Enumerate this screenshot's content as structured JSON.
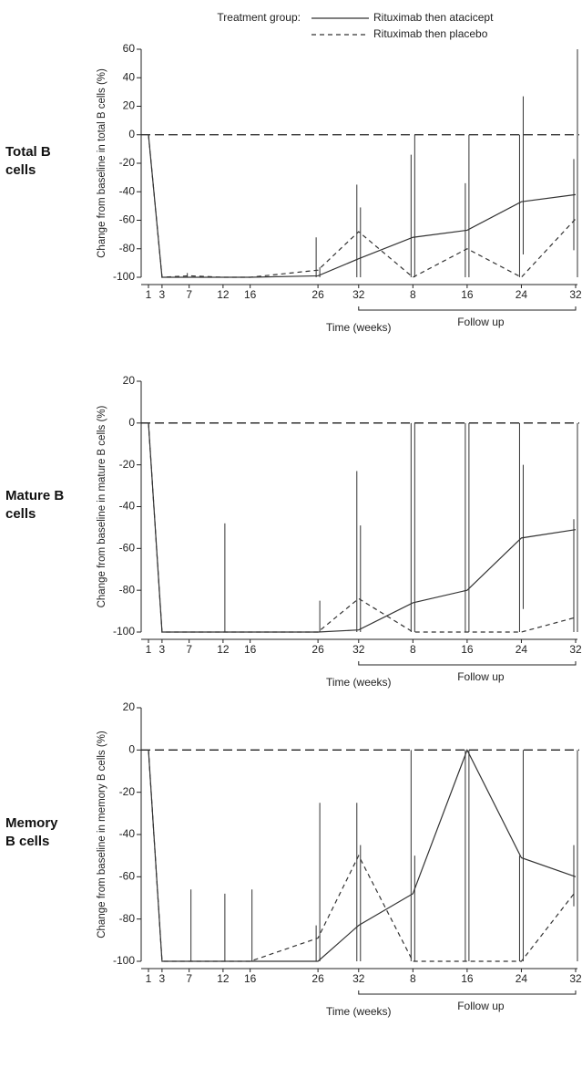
{
  "chart_data": [
    {
      "type": "line",
      "row_label": "Total B cells",
      "y_label": "Change from baseline in total B cells (%)",
      "x_label": "Time (weeks)",
      "follow_up_label": "Follow up",
      "legend_title": "Treatment group:",
      "legend": "top-right",
      "x": [
        1,
        3,
        7,
        12,
        16,
        26,
        32,
        40,
        48,
        56,
        64
      ],
      "xlim": [
        1,
        64
      ],
      "xticks": [
        1,
        3,
        7,
        12,
        16,
        26,
        32,
        {
          "value": 40,
          "label": "8"
        },
        {
          "value": 48,
          "label": "16"
        },
        {
          "value": 56,
          "label": "24"
        },
        {
          "value": 64,
          "label": "32"
        }
      ],
      "ylim": [
        -100,
        60
      ],
      "yticks": [
        -100,
        -80,
        -60,
        -40,
        -20,
        0,
        20,
        40,
        60
      ],
      "reference_line": 0,
      "series": [
        {
          "name": "Rituximab then atacicept",
          "color": "#333333",
          "dashed": false,
          "values": [
            0,
            -100,
            -100,
            -100,
            -100,
            -99,
            -87,
            -72,
            -67,
            -47,
            -42
          ],
          "err_high": [
            null,
            null,
            null,
            null,
            null,
            -93,
            -51,
            0,
            0,
            27,
            60
          ],
          "err_low": [
            null,
            null,
            null,
            null,
            null,
            -100,
            -100,
            -100,
            -100,
            -84,
            -100
          ]
        },
        {
          "name": "Rituximab then placebo",
          "color": "#333333",
          "dashed": true,
          "values": [
            0,
            -100,
            -99,
            -100,
            -100,
            -95,
            -68,
            -100,
            -80,
            -100,
            -59
          ],
          "err_high": [
            null,
            null,
            -97,
            null,
            null,
            -72,
            -35,
            -14,
            -34,
            0,
            -17
          ],
          "err_low": [
            null,
            null,
            -100,
            null,
            null,
            -100,
            -100,
            -100,
            -100,
            -100,
            -81
          ]
        }
      ]
    },
    {
      "type": "line",
      "row_label": "Mature B cells",
      "y_label": "Change from baseline in mature B cells (%)",
      "x_label": "Time (weeks)",
      "follow_up_label": "Follow up",
      "x": [
        1,
        3,
        7,
        12,
        16,
        26,
        32,
        40,
        48,
        56,
        64
      ],
      "xlim": [
        1,
        64
      ],
      "xticks": [
        1,
        3,
        7,
        12,
        16,
        26,
        32,
        {
          "value": 40,
          "label": "8"
        },
        {
          "value": 48,
          "label": "16"
        },
        {
          "value": 56,
          "label": "24"
        },
        {
          "value": 64,
          "label": "32"
        }
      ],
      "ylim": [
        -100,
        20
      ],
      "yticks": [
        -100,
        -80,
        -60,
        -40,
        -20,
        0,
        20
      ],
      "reference_line": 0,
      "series": [
        {
          "name": "Rituximab then atacicept",
          "color": "#333333",
          "dashed": false,
          "values": [
            0,
            -100,
            -100,
            -100,
            -100,
            -100,
            -99,
            -86,
            -80,
            -55,
            -51
          ],
          "err_high": [
            null,
            null,
            null,
            -48,
            null,
            -85,
            -49,
            0,
            0,
            -20,
            0
          ],
          "err_low": [
            null,
            null,
            null,
            -100,
            null,
            -100,
            -100,
            -100,
            -100,
            -89,
            -100
          ]
        },
        {
          "name": "Rituximab then placebo",
          "color": "#333333",
          "dashed": true,
          "values": [
            0,
            -100,
            -100,
            -100,
            -100,
            -100,
            -84,
            -100,
            -100,
            -100,
            -93
          ],
          "err_high": [
            null,
            null,
            null,
            null,
            null,
            null,
            -23,
            0,
            0,
            0,
            -46
          ],
          "err_low": [
            null,
            null,
            null,
            null,
            null,
            null,
            -100,
            -100,
            -100,
            -100,
            -100
          ]
        }
      ]
    },
    {
      "type": "line",
      "row_label": "Memory B cells",
      "y_label": "Change from baseline in memory B cells (%)",
      "x_label": "Time (weeks)",
      "follow_up_label": "Follow up",
      "x": [
        1,
        3,
        7,
        12,
        16,
        26,
        32,
        40,
        48,
        56,
        64
      ],
      "xlim": [
        1,
        64
      ],
      "xticks": [
        1,
        3,
        7,
        12,
        16,
        26,
        32,
        {
          "value": 40,
          "label": "8"
        },
        {
          "value": 48,
          "label": "16"
        },
        {
          "value": 56,
          "label": "24"
        },
        {
          "value": 64,
          "label": "32"
        }
      ],
      "ylim": [
        -100,
        20
      ],
      "yticks": [
        -100,
        -80,
        -60,
        -40,
        -20,
        0,
        20
      ],
      "reference_line": 0,
      "series": [
        {
          "name": "Rituximab then atacicept",
          "color": "#333333",
          "dashed": false,
          "values": [
            0,
            -100,
            -100,
            -100,
            -100,
            -100,
            -83,
            -68,
            0,
            -51,
            -60
          ],
          "err_high": [
            null,
            null,
            -66,
            -68,
            -66,
            -25,
            -45,
            -50,
            0,
            0,
            0
          ],
          "err_low": [
            null,
            null,
            -100,
            -100,
            -100,
            -100,
            -100,
            -100,
            -100,
            -100,
            -100
          ]
        },
        {
          "name": "Rituximab then placebo",
          "color": "#333333",
          "dashed": true,
          "values": [
            0,
            -100,
            -100,
            -100,
            -100,
            -89,
            -50,
            -100,
            -100,
            -100,
            -67
          ],
          "err_high": [
            null,
            null,
            null,
            null,
            null,
            -83,
            -25,
            0,
            0,
            -50,
            -45
          ],
          "err_low": [
            null,
            null,
            null,
            null,
            null,
            -100,
            -100,
            -100,
            -100,
            -100,
            -74
          ]
        }
      ]
    }
  ]
}
